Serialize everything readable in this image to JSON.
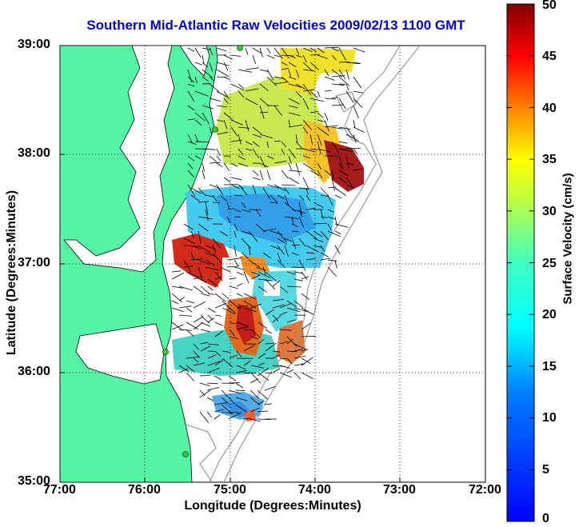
{
  "title": "Southern Mid-Atlantic Raw Velocities 2009/02/13 1100 GMT",
  "xlabel": "Longitude (Degrees:Minutes)",
  "ylabel": "Latitude (Degrees:Minutes)",
  "colorbar": {
    "label": "Surface Velocity (cm/s)",
    "ticks": [
      "0",
      "5",
      "10",
      "15",
      "20",
      "25",
      "30",
      "35",
      "40",
      "45",
      "50"
    ],
    "range": [
      0,
      50
    ]
  },
  "x_ticks": [
    "77:00",
    "76:00",
    "75:00",
    "74:00",
    "73:00",
    "72:00"
  ],
  "y_ticks": [
    "39:00",
    "38:00",
    "37:00",
    "36:00",
    "35:00"
  ],
  "colors": {
    "land": "#55f5a5",
    "coast": "#000000",
    "title": "#0000cc",
    "station": "#33cc33"
  },
  "map": {
    "lon_range": [
      -77,
      -72
    ],
    "lat_range": [
      35,
      39
    ],
    "grid": true
  }
}
